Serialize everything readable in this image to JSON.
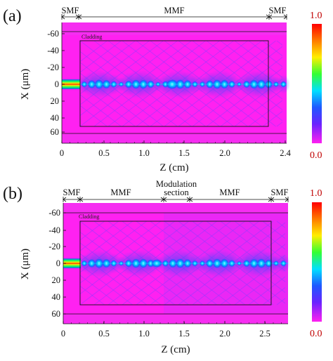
{
  "figure": {
    "panels": [
      {
        "id": "a",
        "label": "(a)",
        "sections": [
          {
            "label": "SMF"
          },
          {
            "label": "MMF"
          },
          {
            "label": "SMF"
          }
        ],
        "cladding_label": "Cladding",
        "x_axis": {
          "title": "Z (cm)",
          "ticks": [
            "0",
            "0.5",
            "1.0",
            "1.5",
            "2.0",
            "2.4"
          ]
        },
        "y_axis": {
          "title": "X (μm)",
          "ticks": [
            "-60",
            "-40",
            "-20",
            "0",
            "20",
            "40",
            "60"
          ]
        },
        "colorbar": {
          "max": "1.0",
          "min": "0.0"
        }
      },
      {
        "id": "b",
        "label": "(b)",
        "sections": [
          {
            "label": "SMF"
          },
          {
            "label": "MMF"
          },
          {
            "label": "Modulation"
          },
          {
            "label": "section"
          },
          {
            "label": "MMF"
          },
          {
            "label": "SMF"
          }
        ],
        "cladding_label": "Cladding",
        "x_axis": {
          "title": "Z (cm)",
          "ticks": [
            "0",
            "0.5",
            "1.0",
            "1.5",
            "2.0",
            "2.5"
          ]
        },
        "y_axis": {
          "title": "X (μm)",
          "ticks": [
            "-60",
            "-40",
            "-20",
            "0",
            "20",
            "40",
            "60"
          ]
        },
        "colorbar": {
          "max": "1.0",
          "min": "0.0"
        }
      }
    ],
    "colors": {
      "background_field": "#ff21f1",
      "cladding_field": "#f226ef",
      "interference": "#8a3dff",
      "core_hot": "#ff2a00",
      "core_warm": "#ffe600",
      "core_mid": "#00ff66",
      "core_cool": "#00c8ff",
      "core_deep": "#2a4dff"
    }
  }
}
